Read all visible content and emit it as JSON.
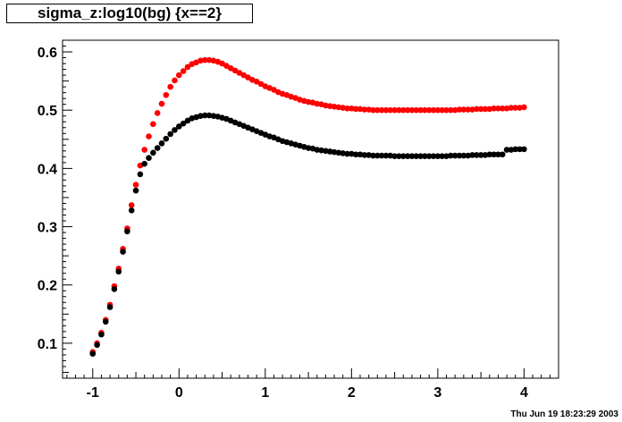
{
  "chart_data": {
    "type": "scatter",
    "title": "sigma_z:log10(bg) {x==2}",
    "xlabel": "",
    "ylabel": "",
    "xlim": [
      -1.35,
      4.4
    ],
    "ylim": [
      0.04,
      0.62
    ],
    "x_ticks": [
      -1,
      0,
      1,
      2,
      3,
      4
    ],
    "y_ticks": [
      0.1,
      0.2,
      0.3,
      0.4,
      0.5,
      0.6
    ],
    "x_tick_labels": [
      "-1",
      "0",
      "1",
      "2",
      "3",
      "4"
    ],
    "y_tick_labels": [
      "0.1",
      "0.2",
      "0.3",
      "0.4",
      "0.5",
      "0.6"
    ],
    "grid": false,
    "legend": "none",
    "series": [
      {
        "color": "#ff0000",
        "x": [
          -1.0,
          -0.95,
          -0.9,
          -0.85,
          -0.8,
          -0.75,
          -0.7,
          -0.65,
          -0.6,
          -0.55,
          -0.5,
          -0.45,
          -0.4,
          -0.35,
          -0.3,
          -0.25,
          -0.2,
          -0.15,
          -0.1,
          -0.05,
          0.0,
          0.05,
          0.1,
          0.15,
          0.2,
          0.25,
          0.3,
          0.35,
          0.4,
          0.45,
          0.5,
          0.55,
          0.6,
          0.65,
          0.7,
          0.75,
          0.8,
          0.85,
          0.9,
          0.95,
          1.0,
          1.05,
          1.1,
          1.15,
          1.2,
          1.25,
          1.3,
          1.35,
          1.4,
          1.45,
          1.5,
          1.55,
          1.6,
          1.65,
          1.7,
          1.75,
          1.8,
          1.85,
          1.9,
          1.95,
          2.0,
          2.05,
          2.1,
          2.15,
          2.2,
          2.25,
          2.3,
          2.35,
          2.4,
          2.45,
          2.5,
          2.55,
          2.6,
          2.65,
          2.7,
          2.75,
          2.8,
          2.85,
          2.9,
          2.95,
          3.0,
          3.05,
          3.1,
          3.15,
          3.2,
          3.25,
          3.3,
          3.35,
          3.4,
          3.45,
          3.5,
          3.55,
          3.6,
          3.65,
          3.7,
          3.75,
          3.8,
          3.85,
          3.9,
          3.95,
          4.0
        ],
        "y": [
          0.085,
          0.1,
          0.118,
          0.14,
          0.166,
          0.198,
          0.228,
          0.262,
          0.297,
          0.337,
          0.372,
          0.405,
          0.432,
          0.455,
          0.476,
          0.495,
          0.511,
          0.526,
          0.54,
          0.551,
          0.56,
          0.567,
          0.574,
          0.579,
          0.582,
          0.585,
          0.586,
          0.586,
          0.585,
          0.583,
          0.58,
          0.576,
          0.572,
          0.568,
          0.564,
          0.56,
          0.556,
          0.552,
          0.549,
          0.545,
          0.541,
          0.538,
          0.535,
          0.531,
          0.528,
          0.526,
          0.523,
          0.521,
          0.518,
          0.516,
          0.514,
          0.513,
          0.511,
          0.51,
          0.508,
          0.507,
          0.506,
          0.505,
          0.504,
          0.503,
          0.503,
          0.502,
          0.502,
          0.501,
          0.501,
          0.5,
          0.5,
          0.5,
          0.5,
          0.5,
          0.5,
          0.5,
          0.5,
          0.5,
          0.5,
          0.5,
          0.5,
          0.5,
          0.5,
          0.5,
          0.5,
          0.5,
          0.5,
          0.5,
          0.5,
          0.501,
          0.501,
          0.501,
          0.501,
          0.502,
          0.502,
          0.502,
          0.502,
          0.503,
          0.503,
          0.503,
          0.503,
          0.504,
          0.504,
          0.504,
          0.505
        ]
      },
      {
        "color": "#000000",
        "x": [
          -1.0,
          -0.95,
          -0.9,
          -0.85,
          -0.8,
          -0.75,
          -0.7,
          -0.65,
          -0.6,
          -0.55,
          -0.5,
          -0.45,
          -0.4,
          -0.35,
          -0.3,
          -0.25,
          -0.2,
          -0.15,
          -0.1,
          -0.05,
          0.0,
          0.05,
          0.1,
          0.15,
          0.2,
          0.25,
          0.3,
          0.35,
          0.4,
          0.45,
          0.5,
          0.55,
          0.6,
          0.65,
          0.7,
          0.75,
          0.8,
          0.85,
          0.9,
          0.95,
          1.0,
          1.05,
          1.1,
          1.15,
          1.2,
          1.25,
          1.3,
          1.35,
          1.4,
          1.45,
          1.5,
          1.55,
          1.6,
          1.65,
          1.7,
          1.75,
          1.8,
          1.85,
          1.9,
          1.95,
          2.0,
          2.05,
          2.1,
          2.15,
          2.2,
          2.25,
          2.3,
          2.35,
          2.4,
          2.45,
          2.5,
          2.55,
          2.6,
          2.65,
          2.7,
          2.75,
          2.8,
          2.85,
          2.9,
          2.95,
          3.0,
          3.05,
          3.1,
          3.15,
          3.2,
          3.25,
          3.3,
          3.35,
          3.4,
          3.45,
          3.5,
          3.55,
          3.6,
          3.65,
          3.7,
          3.75,
          3.8,
          3.85,
          3.9,
          3.95,
          4.0
        ],
        "y": [
          0.082,
          0.097,
          0.115,
          0.137,
          0.162,
          0.193,
          0.223,
          0.257,
          0.292,
          0.328,
          0.362,
          0.39,
          0.408,
          0.418,
          0.427,
          0.435,
          0.443,
          0.451,
          0.459,
          0.466,
          0.472,
          0.477,
          0.482,
          0.486,
          0.488,
          0.49,
          0.491,
          0.491,
          0.49,
          0.489,
          0.487,
          0.485,
          0.482,
          0.479,
          0.476,
          0.473,
          0.47,
          0.467,
          0.464,
          0.461,
          0.458,
          0.455,
          0.453,
          0.45,
          0.447,
          0.445,
          0.443,
          0.441,
          0.439,
          0.437,
          0.435,
          0.434,
          0.432,
          0.431,
          0.43,
          0.429,
          0.428,
          0.427,
          0.426,
          0.425,
          0.425,
          0.424,
          0.424,
          0.423,
          0.423,
          0.422,
          0.422,
          0.422,
          0.422,
          0.422,
          0.421,
          0.421,
          0.421,
          0.421,
          0.421,
          0.421,
          0.421,
          0.421,
          0.421,
          0.421,
          0.421,
          0.421,
          0.421,
          0.422,
          0.422,
          0.422,
          0.422,
          0.422,
          0.423,
          0.423,
          0.423,
          0.423,
          0.424,
          0.424,
          0.424,
          0.424,
          0.432,
          0.432,
          0.433,
          0.433,
          0.433
        ]
      }
    ]
  },
  "footer": {
    "timestamp": "Thu Jun 19 18:23:29 2003"
  }
}
